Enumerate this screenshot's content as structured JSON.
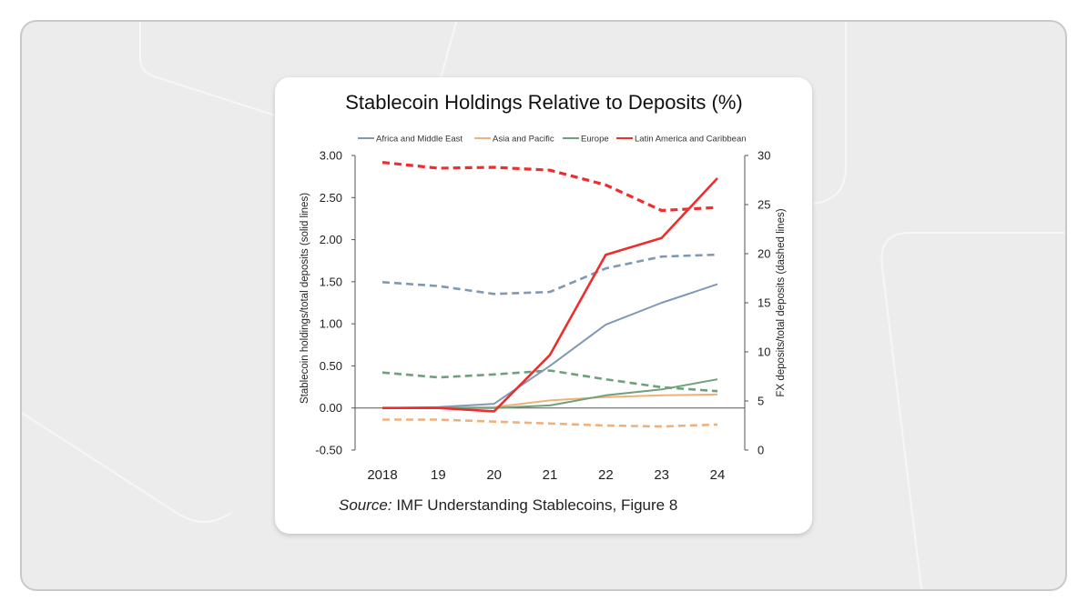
{
  "chart_data": {
    "type": "line",
    "title": "Stablecoin Holdings Relative to Deposits (%)",
    "source_label": "Source:",
    "source_text": " IMF Understanding Stablecoins, Figure 8",
    "categories": [
      "2018",
      "19",
      "20",
      "21",
      "22",
      "23",
      "24"
    ],
    "y_left": {
      "label": "Stablecoin holdings/total deposits (solid lines)",
      "ylim": [
        -0.5,
        3.0
      ],
      "ticks": [
        "-0.50",
        "0.00",
        "0.50",
        "1.00",
        "1.50",
        "2.00",
        "2.50",
        "3.00"
      ],
      "tick_values": [
        -0.5,
        0,
        0.5,
        1,
        1.5,
        2,
        2.5,
        3
      ]
    },
    "y_right": {
      "label": "FX deposits/total deposits (dashed lines)",
      "ylim": [
        0,
        30
      ],
      "ticks": [
        "0",
        "5",
        "10",
        "15",
        "20",
        "25",
        "30"
      ],
      "tick_values": [
        0,
        5,
        10,
        15,
        20,
        25,
        30
      ]
    },
    "legend_position": "top",
    "series": [
      {
        "name": "Africa and Middle East",
        "color": "#7f98b4",
        "style": "solid",
        "axis": "left",
        "values": [
          0.0,
          0.01,
          0.05,
          0.5,
          0.99,
          1.25,
          1.47
        ]
      },
      {
        "name": "Asia and Pacific",
        "color": "#f0b07c",
        "style": "solid",
        "axis": "left",
        "values": [
          0.0,
          0.0,
          0.01,
          0.09,
          0.13,
          0.15,
          0.16
        ]
      },
      {
        "name": "Europe",
        "color": "#6ea07b",
        "style": "solid",
        "axis": "left",
        "values": [
          0.0,
          0.0,
          0.0,
          0.03,
          0.15,
          0.22,
          0.34
        ]
      },
      {
        "name": "Latin America and Caribbean",
        "color": "#ee2d2d",
        "style": "solid",
        "axis": "left",
        "values": [
          0.0,
          0.0,
          -0.04,
          0.63,
          1.82,
          2.02,
          2.73
        ]
      },
      {
        "name": "Africa and Middle East",
        "color": "#7f98b4",
        "style": "dashed",
        "axis": "right",
        "values": [
          17.1,
          16.7,
          15.9,
          16.1,
          18.5,
          19.7,
          19.9
        ]
      },
      {
        "name": "Asia and Pacific",
        "color": "#f0b07c",
        "style": "dashed",
        "axis": "right",
        "values": [
          3.1,
          3.1,
          2.9,
          2.7,
          2.5,
          2.4,
          2.6
        ]
      },
      {
        "name": "Europe",
        "color": "#6ea07b",
        "style": "dashed",
        "axis": "right",
        "values": [
          7.9,
          7.4,
          7.7,
          8.1,
          7.2,
          6.4,
          6.0
        ]
      },
      {
        "name": "Latin America and Caribbean",
        "color": "#ee2d2d",
        "style": "dashed",
        "axis": "right",
        "values": [
          29.3,
          28.7,
          28.8,
          28.5,
          27.0,
          24.4,
          24.7
        ]
      }
    ],
    "grid": false
  }
}
